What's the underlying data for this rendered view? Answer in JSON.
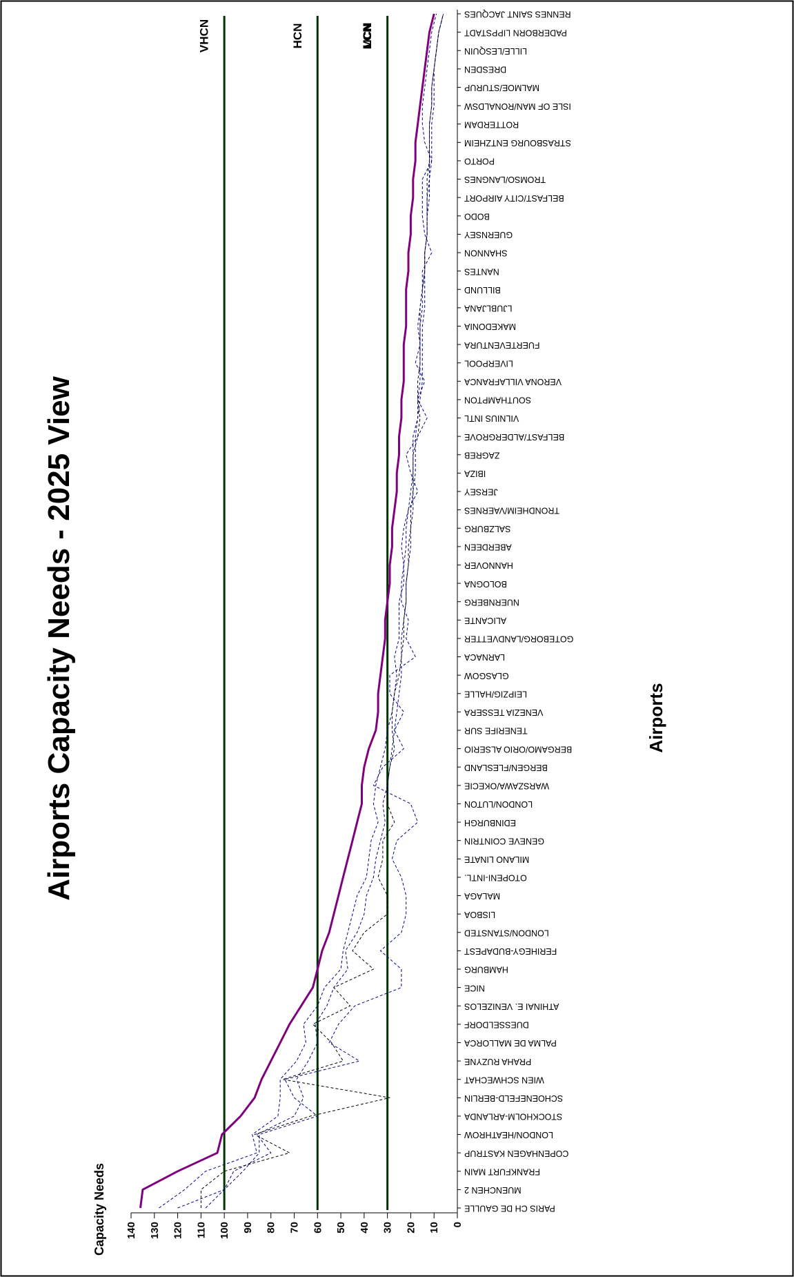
{
  "chart_data": {
    "type": "line",
    "title": "Airports Capacity Needs - 2025 View",
    "xlabel": "Airports",
    "ylabel": "Capacity Needs",
    "ylim": [
      0,
      140
    ],
    "yticks": [
      140,
      130,
      120,
      110,
      100,
      90,
      80,
      70,
      60,
      50,
      40,
      30,
      20,
      10,
      0
    ],
    "orientation": "rotated-90",
    "grid": false,
    "legend": "none",
    "categories": [
      "PARIS CH DE GAULLE",
      "MUENCHEN 2",
      "FRANKFURT MAIN",
      "COPENHAGEN KASTRUP",
      "LONDON/HEATHROW",
      "STOCKHOLM-ARLANDA",
      "SCHOENEFELD-BERLIN",
      "WIEN SCHWECHAT",
      "PRAHA RUZYNE",
      "PALMA DE MALLORCA",
      "DUESSELDORF",
      "ATHINAI E. VENIZELOS",
      "NICE",
      "HAMBURG",
      "FERIHEGY-BUDAPEST",
      "LONDON/STANSTED",
      "LISBOA",
      "MALAGA",
      "OTOPENI-INTL.",
      "MILANO LINATE",
      "GENEVE COINTRIN",
      "EDINBURGH",
      "LONDON/LUTON",
      "WARSZAWA/OKECIE",
      "BERGEN/FLESLAND",
      "BERGAMO/ORIO ALSERIO",
      "TENERIFE SUR",
      "VENEZIA TESSERA",
      "LEIPZIG/HALLE",
      "GLASGOW",
      "LARNACA",
      "GOTEBORG/LANDVETTER",
      "ALICANTE",
      "NUERNBERG",
      "BOLOGNA",
      "HANNOVER",
      "ABERDEEN",
      "SALZBURG",
      "TRONDHEIM/VAERNES",
      "JERSEY",
      "IBIZA",
      "ZAGREB",
      "BELFAST/ALDERGROVE",
      "VILNIUS INTL",
      "SOUTHAMPTON",
      "VERONA VILLAFRANCA",
      "LIVERPOOL",
      "FUERTEVENTURA",
      "MAKEDONIA",
      "LJUBLJANA",
      "BILLUND",
      "NANTES",
      "SHANNON",
      "GUERNSEY",
      "BODO",
      "BELFAST/CITY AIRPORT",
      "TROMSO/LANGNES",
      "PORTO",
      "STRASBOURG ENTZHEIM",
      "ROTTERDAM",
      "ISLE OF MAN/RONALDSW",
      "MALMOE/STURUP",
      "DRESDEN",
      "LILLE/LESQUIN",
      "PADERBORN LIPPSTADT",
      "RENNES SAINT JACQUES"
    ],
    "series": [
      {
        "style": "solid",
        "color": "#800080",
        "values": [
          136,
          135,
          120,
          103,
          101,
          93,
          87,
          84,
          80,
          76,
          72,
          67,
          62,
          60,
          58,
          55,
          53,
          51,
          49,
          47,
          45,
          43,
          41,
          41,
          40,
          38,
          35,
          34,
          34,
          33,
          32,
          31,
          31,
          30,
          29,
          29,
          28,
          28,
          27,
          26,
          26,
          25,
          25,
          24,
          24,
          23,
          23,
          23,
          22,
          22,
          22,
          21,
          21,
          20,
          20,
          19,
          19,
          18,
          18,
          17,
          16,
          15,
          14,
          13,
          12,
          10
        ]
      },
      {
        "style": "dashed",
        "color": "#000080",
        "values": [
          128,
          117,
          108,
          86,
          88,
          77,
          76,
          76,
          69,
          65,
          66,
          60,
          57,
          50,
          49,
          47,
          45,
          43,
          39,
          38,
          37,
          34,
          36,
          35,
          33,
          31,
          30,
          28,
          27,
          26,
          27,
          25,
          25,
          25,
          23,
          23,
          22,
          22,
          21,
          20,
          19,
          19,
          19,
          17,
          17,
          16,
          16,
          16,
          16,
          15,
          15,
          14,
          14,
          13,
          13,
          13,
          12,
          12,
          12,
          12,
          11,
          11,
          10,
          9,
          8,
          6
        ]
      },
      {
        "style": "dashed",
        "color": "#000080",
        "values": [
          120,
          100,
          96,
          80,
          86,
          70,
          66,
          69,
          64,
          60,
          61,
          56,
          53,
          47,
          48,
          43,
          40,
          39,
          36,
          35,
          33,
          31,
          32,
          30,
          29,
          28,
          27,
          26,
          25,
          24,
          24,
          24,
          23,
          22,
          22,
          21,
          20,
          20,
          19,
          19,
          18,
          18,
          18,
          17,
          16,
          15,
          15,
          15,
          15,
          14,
          14,
          14,
          14,
          13,
          13,
          12,
          12,
          11,
          11,
          11,
          10,
          10,
          10,
          9,
          8,
          6
        ]
      },
      {
        "style": "dashed",
        "color": "#000000",
        "values": [
          110,
          110,
          100,
          72,
          87,
          63,
          29,
          75,
          49,
          54,
          62,
          46,
          53,
          36,
          45,
          40,
          30,
          30,
          34,
          32,
          32,
          27,
          30,
          30,
          29,
          27,
          28,
          28,
          27,
          25,
          24,
          23,
          23,
          22,
          22,
          21,
          21,
          20,
          20,
          19,
          19,
          19,
          17,
          16,
          17,
          17,
          16,
          16,
          16,
          16,
          15,
          14,
          14,
          13,
          13,
          13,
          13,
          12,
          12,
          12,
          11,
          11,
          10,
          9,
          8,
          6
        ]
      },
      {
        "style": "dashed",
        "color": "#000080",
        "values": [
          108,
          100,
          92,
          85,
          85,
          60,
          70,
          74,
          42,
          55,
          51,
          44,
          24,
          24,
          33,
          24,
          22,
          22,
          24,
          28,
          26,
          17,
          20,
          36,
          32,
          23,
          27,
          23,
          29,
          29,
          18,
          22,
          21,
          24,
          24,
          23,
          24,
          23,
          21,
          17,
          20,
          22,
          17,
          13,
          17,
          14,
          18,
          16,
          17,
          16,
          15,
          15,
          11,
          14,
          15,
          15,
          15,
          11,
          14,
          15,
          15,
          14,
          13,
          12,
          11,
          9
        ]
      }
    ],
    "reference_lines": [
      {
        "value": 100,
        "label": "VHCN",
        "color": "#003300"
      },
      {
        "value": 60,
        "label": "HCN",
        "color": "#003300"
      },
      {
        "value": 30,
        "label": "MCN",
        "color": "#003300"
      },
      {
        "value": 0,
        "label": "LCN",
        "color": "#003300"
      }
    ]
  }
}
